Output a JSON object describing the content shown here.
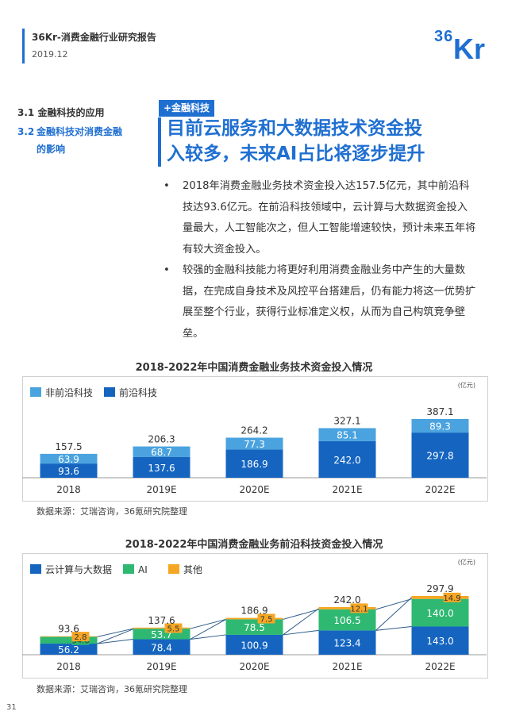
{
  "header": {
    "report_title": "36Kr-消费金融行业研究报告",
    "date": "2019.12",
    "logo_text": "36Kr",
    "brand_color": "#1f6fd1"
  },
  "nav": {
    "item1": {
      "num": "3.1",
      "label": "金融科技的应用"
    },
    "item2": {
      "num": "3.2",
      "label_line1": "金融科技对消费金融",
      "label_line2": "的影响"
    }
  },
  "tag": "+金融科技",
  "heading": {
    "line1": "目前云服务和大数据技术资金投",
    "line2": "入较多，未来AI占比将逐步提升"
  },
  "bullets": [
    "2018年消费金融业务技术资金投入达157.5亿元，其中前沿科技达93.6亿元。在前沿科技领域中，云计算与大数据资金投入量最大，人工智能次之，但人工智能增速较快，预计未来五年将有较大资金投入。",
    "较强的金融科技能力将更好利用消费金融业务中产生的大量数据，在完成自身技术及风控平台搭建后，仍有能力将这一优势扩展至整个行业，获得行业标准定义权，从而为自己构筑竞争壁垒。"
  ],
  "source_text": "数据来源：艾瑞咨询，36氪研究院整理",
  "page_number": "31",
  "chart_data": [
    {
      "type": "bar",
      "stacked": true,
      "title": "2018-2022年中国消费金融业务技术资金投入情况",
      "unit": "(亿元)",
      "categories": [
        "2018",
        "2019E",
        "2020E",
        "2021E",
        "2022E"
      ],
      "series": [
        {
          "name": "前沿科技",
          "color": "#1565c0",
          "values": [
            93.6,
            137.6,
            186.9,
            242.0,
            297.8
          ]
        },
        {
          "name": "非前沿科技",
          "color": "#4aa3df",
          "values": [
            63.9,
            68.7,
            77.3,
            85.1,
            89.3
          ]
        }
      ],
      "totals": [
        157.5,
        206.3,
        264.2,
        327.1,
        387.1
      ],
      "legend_position": "top-left",
      "legend_order": [
        "非前沿科技",
        "前沿科技"
      ]
    },
    {
      "type": "bar",
      "stacked": true,
      "title": "2018-2022年中国消费金融业务前沿科技资金投入情况",
      "unit": "(亿元)",
      "categories": [
        "2018",
        "2019E",
        "2020E",
        "2021E",
        "2022E"
      ],
      "series": [
        {
          "name": "云计算与大数据",
          "color": "#1565c0",
          "values": [
            56.2,
            78.4,
            100.9,
            123.4,
            143.0
          ]
        },
        {
          "name": "AI",
          "color": "#2eb872",
          "values": [
            34.6,
            53.7,
            78.5,
            106.5,
            140.0
          ]
        },
        {
          "name": "其他",
          "color": "#f5a623",
          "values": [
            2.8,
            5.5,
            7.5,
            12.1,
            14.9
          ]
        }
      ],
      "totals": [
        93.6,
        137.6,
        186.9,
        242.0,
        297.9
      ],
      "legend_position": "top-left",
      "trend_lines": true
    }
  ]
}
